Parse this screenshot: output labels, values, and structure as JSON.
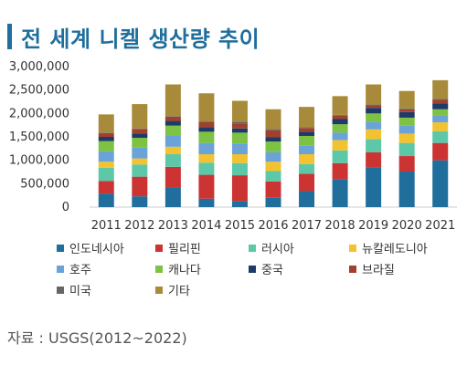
{
  "header": {
    "title": "전 세계 니켈 생산량 추이"
  },
  "source": "자료 : USGS(2012~2022)",
  "chart_data": {
    "type": "bar",
    "stacked": true,
    "title": "전 세계 니켈 생산량 추이",
    "xlabel": "",
    "ylabel": "",
    "ylim": [
      0,
      3000000
    ],
    "yticks": [
      0,
      500000,
      1000000,
      1500000,
      2000000,
      2500000,
      3000000
    ],
    "ytick_labels": [
      "0",
      "500,000",
      "1,000,000",
      "1,500,000",
      "2,000,000",
      "2,500,000",
      "3,000,000"
    ],
    "categories": [
      "2011",
      "2012",
      "2013",
      "2014",
      "2015",
      "2016",
      "2017",
      "2018",
      "2019",
      "2020",
      "2021"
    ],
    "grid": false,
    "legend_position": "bottom",
    "series": [
      {
        "name": "인도네시아",
        "color": "#1f6e9c",
        "values": [
          290000,
          230000,
          420000,
          180000,
          130000,
          200000,
          340000,
          600000,
          850000,
          760000,
          1000000
        ]
      },
      {
        "name": "필리핀",
        "color": "#cc3333",
        "values": [
          270000,
          420000,
          440000,
          510000,
          550000,
          350000,
          370000,
          340000,
          320000,
          330000,
          370000
        ]
      },
      {
        "name": "러시아",
        "color": "#5cc8a8",
        "values": [
          280000,
          260000,
          270000,
          260000,
          260000,
          220000,
          210000,
          270000,
          280000,
          280000,
          250000
        ]
      },
      {
        "name": "뉴칼레도니아",
        "color": "#f2c230",
        "values": [
          130000,
          130000,
          160000,
          180000,
          190000,
          200000,
          210000,
          220000,
          210000,
          200000,
          190000
        ]
      },
      {
        "name": "호주",
        "color": "#6aa3d8",
        "values": [
          220000,
          230000,
          230000,
          240000,
          230000,
          200000,
          180000,
          160000,
          160000,
          170000,
          150000
        ]
      },
      {
        "name": "캐나다",
        "color": "#7dc242",
        "values": [
          220000,
          210000,
          220000,
          240000,
          230000,
          230000,
          210000,
          180000,
          180000,
          170000,
          130000
        ]
      },
      {
        "name": "중국",
        "color": "#1e3a68",
        "values": [
          90000,
          90000,
          100000,
          100000,
          90000,
          90000,
          90000,
          110000,
          120000,
          120000,
          120000
        ]
      },
      {
        "name": "브라질",
        "color": "#a0412d",
        "values": [
          80000,
          100000,
          90000,
          110000,
          110000,
          150000,
          80000,
          70000,
          60000,
          60000,
          80000
        ]
      },
      {
        "name": "미국",
        "color": "#666666",
        "values": [
          10000,
          10000,
          10000,
          10000,
          30000,
          30000,
          20000,
          20000,
          10000,
          20000,
          20000
        ]
      },
      {
        "name": "기타",
        "color": "#a88b3a",
        "values": [
          390000,
          520000,
          680000,
          600000,
          450000,
          420000,
          430000,
          400000,
          430000,
          370000,
          400000
        ]
      }
    ]
  }
}
